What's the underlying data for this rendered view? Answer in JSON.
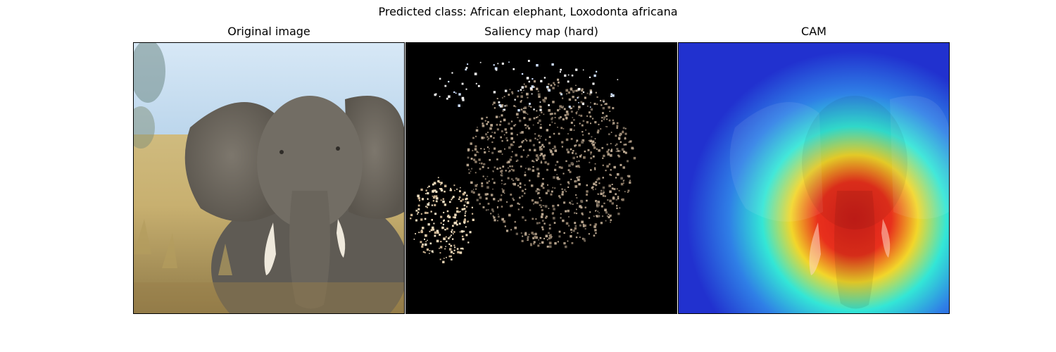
{
  "figure": {
    "suptitle": "Predicted class: African elephant, Loxodonta africana"
  },
  "panels": [
    {
      "title": "Original image",
      "icon": "elephant-photo"
    },
    {
      "title": "Saliency map (hard)",
      "icon": "saliency-speckle"
    },
    {
      "title": "CAM",
      "icon": "cam-heatmap"
    }
  ],
  "colors": {
    "sky": "#cfe3f2",
    "grass": "#d8c58a",
    "elephant": "#6e6a62",
    "tusk": "#efe9dc",
    "saliency_bg": "#000000",
    "saliency_dots": "#a89680",
    "cam_low": "#1f2fd6",
    "cam_mid": "#26e0d2",
    "cam_high": "#e0251b"
  }
}
